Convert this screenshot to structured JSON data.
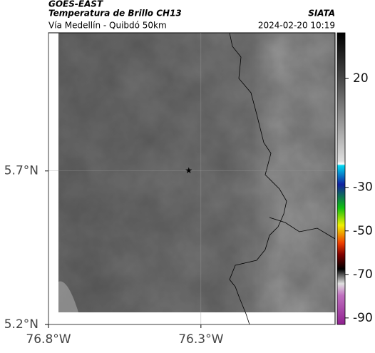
{
  "header": {
    "product": "GOES-EAST",
    "title": "Temperatura de Brillo CH13",
    "source": "SIATA",
    "subtitle": "Vía Medellín - Quibdó 50km",
    "datetime": "2024-02-20 10:19"
  },
  "map": {
    "lonlim": [
      -76.8,
      -75.86
    ],
    "latlim": [
      5.2,
      6.15
    ],
    "xticks": [
      {
        "value": -76.8,
        "label": "76.8°W"
      },
      {
        "value": -76.3,
        "label": "76.3°W"
      }
    ],
    "yticks": [
      {
        "value": 5.7,
        "label": "5.7°N"
      },
      {
        "value": 5.2,
        "label": "5.2°N"
      }
    ],
    "grid": true,
    "marker": {
      "lon": -76.34,
      "lat": 5.7
    }
  },
  "colorbar": {
    "lim": [
      -93,
      41
    ],
    "ticks": [
      20,
      -30,
      -50,
      -70,
      -90
    ]
  }
}
